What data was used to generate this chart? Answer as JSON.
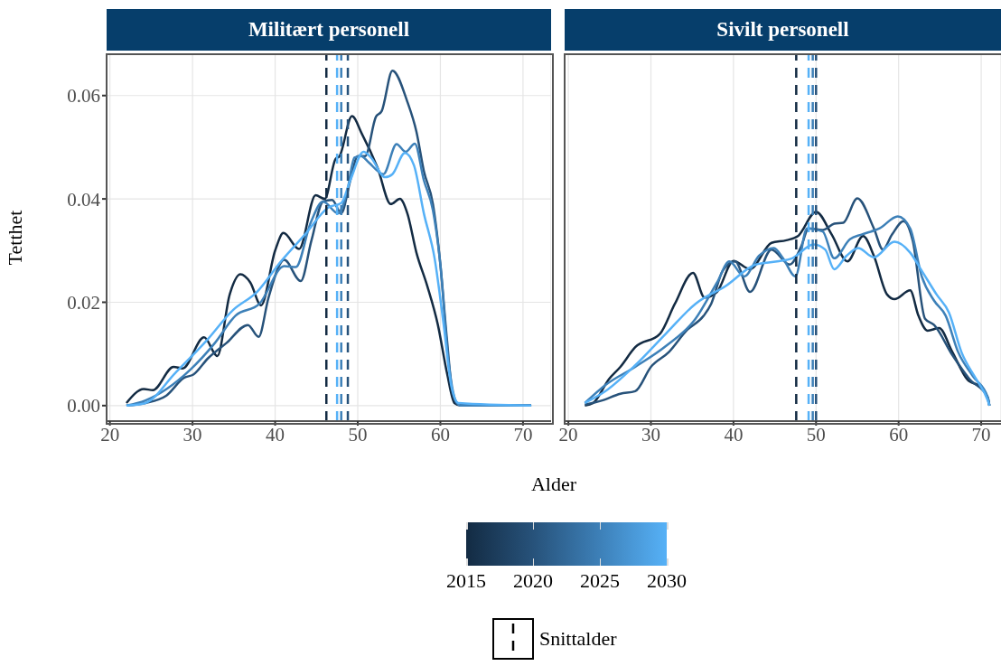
{
  "chart_data": [
    {
      "type": "line",
      "title": "Militært personell",
      "ylabel": "Tetthet",
      "xlabel": "Alder",
      "xlim": [
        19.6,
        73.4
      ],
      "xticks": [
        20,
        30,
        40,
        50,
        60,
        70
      ],
      "ylim": [
        -0.003,
        0.068
      ],
      "yticks": [
        {
          "value": 0,
          "label": "0.00"
        },
        0.02,
        0.04,
        0.06
      ],
      "grid": true,
      "line_style": "solid",
      "annotations": [
        "Snittalder"
      ],
      "clim": [
        2015,
        2030
      ],
      "cticks": [
        2015,
        2020,
        2025,
        2030
      ],
      "series": [
        {
          "color": "#132b43",
          "x": [
            22,
            24.1,
            25.2,
            27.7,
            28.8,
            31.4,
            33,
            34.5,
            35.8,
            37,
            38.3,
            40,
            41,
            42.9,
            44.9,
            46,
            47.3,
            47.8,
            49.3,
            50.5,
            52.4,
            54,
            55.1,
            56,
            57.1,
            58.4,
            59.7,
            60.8,
            61.7,
            62.5,
            71
          ],
          "values": [
            0.0005,
            0.0032,
            0.003,
            0.0075,
            0.0072,
            0.0132,
            0.0096,
            0.0215,
            0.0254,
            0.0238,
            0.0194,
            0.03,
            0.0334,
            0.0303,
            0.0407,
            0.04,
            0.0477,
            0.0483,
            0.056,
            0.0526,
            0.046,
            0.039,
            0.04,
            0.0372,
            0.0296,
            0.0232,
            0.0156,
            0.0063,
            0.0005,
            0,
            0
          ]
        },
        {
          "color": "#27527a",
          "x": [
            22,
            24.3,
            26.8,
            29,
            30.1,
            31.9,
            34.1,
            36.7,
            38,
            39.2,
            41.1,
            43.1,
            44.4,
            45.8,
            46.9,
            48,
            49.1,
            50,
            50.9,
            52.2,
            52.9,
            54.2,
            56,
            57.1,
            58,
            59.1,
            60,
            60.8,
            61.5,
            62.2,
            71
          ],
          "values": [
            0,
            0.0005,
            0.0019,
            0.0054,
            0.006,
            0.0092,
            0.0121,
            0.0156,
            0.0133,
            0.0209,
            0.0282,
            0.0241,
            0.032,
            0.0395,
            0.0398,
            0.0372,
            0.0436,
            0.0483,
            0.0483,
            0.0559,
            0.057,
            0.0648,
            0.0588,
            0.053,
            0.0454,
            0.039,
            0.0273,
            0.0127,
            0.0022,
            0.0002,
            0
          ]
        },
        {
          "color": "#3d80b8",
          "x": [
            22,
            24.3,
            29.7,
            32.7,
            35.2,
            38.1,
            41.1,
            42.5,
            44.3,
            45.8,
            47.6,
            48.7,
            49.6,
            50.4,
            51.3,
            53.1,
            54.7,
            55.8,
            56.9,
            58,
            59.1,
            60,
            60.9,
            61.9,
            62.5,
            71
          ],
          "values": [
            0,
            0.001,
            0.0069,
            0.0121,
            0.0174,
            0.0197,
            0.027,
            0.0268,
            0.0354,
            0.0395,
            0.0372,
            0.0413,
            0.048,
            0.0483,
            0.0471,
            0.0448,
            0.0506,
            0.0491,
            0.0507,
            0.0436,
            0.0378,
            0.0273,
            0.0098,
            0.0008,
            0,
            0
          ]
        },
        {
          "color": "#56b1f7",
          "x": [
            22,
            24.3,
            27.9,
            31.6,
            34.9,
            37.8,
            40.7,
            43.6,
            46.5,
            48,
            49.1,
            50.7,
            51.6,
            53.3,
            54.2,
            55.7,
            56.8,
            58,
            59.3,
            60.4,
            61.3,
            62.2,
            71
          ],
          "values": [
            0,
            0.0005,
            0.0063,
            0.0124,
            0.0185,
            0.022,
            0.0279,
            0.0331,
            0.0384,
            0.0392,
            0.0436,
            0.0491,
            0.048,
            0.0442,
            0.0448,
            0.0489,
            0.0465,
            0.0372,
            0.0285,
            0.0156,
            0.004,
            0.0005,
            0
          ]
        }
      ],
      "ref_lines": [
        {
          "axis": "x",
          "value": 46.2,
          "color": "#132b43",
          "line_style": "dashed"
        },
        {
          "axis": "x",
          "value": 48.8,
          "color": "#27527a",
          "line_style": "dashed"
        },
        {
          "axis": "x",
          "value": 48,
          "color": "#3d80b8",
          "line_style": "dashed"
        },
        {
          "axis": "x",
          "value": 47.5,
          "color": "#56b1f7",
          "line_style": "dashed"
        }
      ]
    },
    {
      "type": "line",
      "title": "Sivilt personell",
      "xlim": [
        19.55,
        72.4
      ],
      "xticks": [
        20,
        30,
        40,
        50,
        60,
        70
      ],
      "ylim": [
        -0.003,
        0.068
      ],
      "tick_labels": "x",
      "grid": true,
      "line_style": "solid",
      "series": [
        {
          "color": "#132b43",
          "x": [
            22,
            23,
            24.9,
            26.3,
            28.1,
            31.1,
            32.9,
            35.1,
            36.5,
            38,
            40,
            42,
            44.6,
            46.4,
            47.8,
            50,
            51.9,
            53.8,
            55.7,
            57,
            58.6,
            59.5,
            61.4,
            62.4,
            63.5,
            64.9,
            66.5,
            68.3,
            70.1,
            70.8,
            71
          ],
          "values": [
            0,
            0.0005,
            0.0051,
            0.0075,
            0.0113,
            0.0139,
            0.0197,
            0.0257,
            0.0209,
            0.022,
            0.028,
            0.0264,
            0.0315,
            0.032,
            0.0328,
            0.0375,
            0.0331,
            0.0279,
            0.0328,
            0.029,
            0.0215,
            0.0206,
            0.0223,
            0.0174,
            0.0145,
            0.015,
            0.0104,
            0.0051,
            0.0034,
            0.0013,
            0
          ]
        },
        {
          "color": "#27527a",
          "x": [
            22,
            24.1,
            26.3,
            28.1,
            30,
            32.2,
            34.3,
            36.4,
            37.3,
            38.7,
            40.2,
            42,
            44.6,
            46.8,
            48.2,
            49.1,
            50.8,
            52.2,
            53.3,
            55,
            57,
            58.1,
            59.2,
            60.6,
            61.7,
            63.2,
            64.3,
            66.5,
            68.6,
            70.8,
            71
          ],
          "values": [
            0.0002,
            0.001,
            0.0023,
            0.0028,
            0.0075,
            0.0104,
            0.0145,
            0.0174,
            0.0197,
            0.0261,
            0.0279,
            0.022,
            0.0302,
            0.0273,
            0.0308,
            0.0343,
            0.034,
            0.0352,
            0.0354,
            0.0401,
            0.0343,
            0.0302,
            0.0331,
            0.0357,
            0.032,
            0.0168,
            0.0156,
            0.0098,
            0.0051,
            0.0016,
            0
          ]
        },
        {
          "color": "#3d80b8",
          "x": [
            22,
            24.5,
            28.1,
            31.8,
            35.4,
            38,
            39.5,
            41.3,
            43.1,
            44.9,
            46,
            47.5,
            48.9,
            50.8,
            52.2,
            54.1,
            55.5,
            57.7,
            59.9,
            61.4,
            62.8,
            64.3,
            65.7,
            67.2,
            69,
            70.8,
            71
          ],
          "values": [
            0.0005,
            0.004,
            0.0075,
            0.0115,
            0.0168,
            0.0238,
            0.0279,
            0.025,
            0.029,
            0.0305,
            0.0285,
            0.025,
            0.0343,
            0.0337,
            0.0285,
            0.0322,
            0.0331,
            0.0343,
            0.0366,
            0.0343,
            0.025,
            0.0203,
            0.0174,
            0.0104,
            0.0057,
            0.0016,
            0
          ]
        },
        {
          "color": "#56b1f7",
          "x": [
            22,
            24.5,
            28.1,
            31.8,
            35.4,
            39.1,
            42.7,
            45.3,
            47.1,
            49.7,
            51.1,
            52.2,
            53.7,
            55.1,
            57,
            59.5,
            61.4,
            62.8,
            64.6,
            66.1,
            67.6,
            69.4,
            70.8,
            71
          ],
          "values": [
            0.0005,
            0.0028,
            0.0078,
            0.0139,
            0.0197,
            0.0232,
            0.0273,
            0.0279,
            0.0285,
            0.0312,
            0.0302,
            0.0264,
            0.029,
            0.0305,
            0.0287,
            0.0317,
            0.0296,
            0.0261,
            0.0215,
            0.018,
            0.0104,
            0.0051,
            0.001,
            0
          ]
        }
      ],
      "ref_lines": [
        {
          "axis": "x",
          "value": 47.6,
          "color": "#132b43",
          "line_style": "dashed"
        },
        {
          "axis": "x",
          "value": 50,
          "color": "#27527a",
          "line_style": "dashed"
        },
        {
          "axis": "x",
          "value": 49.6,
          "color": "#3d80b8",
          "line_style": "dashed"
        },
        {
          "axis": "x",
          "value": 49.1,
          "color": "#56b1f7",
          "line_style": "dashed"
        }
      ]
    }
  ]
}
